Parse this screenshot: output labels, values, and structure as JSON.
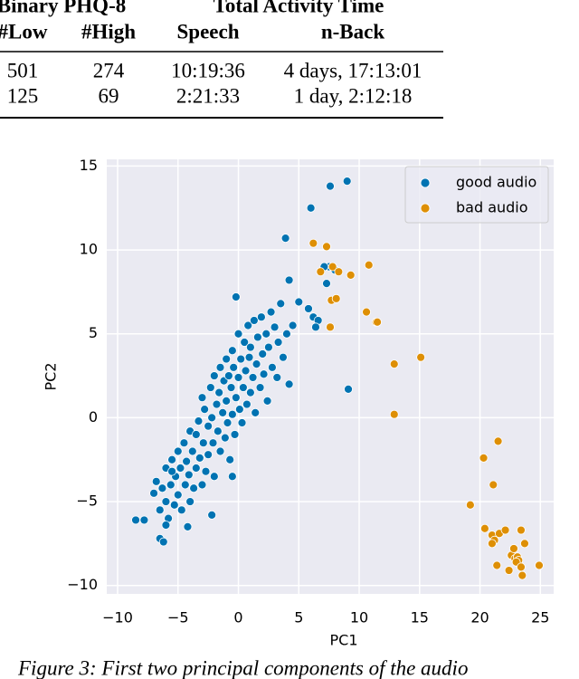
{
  "table": {
    "group_headers": [
      "Binary PHQ-8",
      "Total Activity Time"
    ],
    "columns": [
      "#Low",
      "#High",
      "Speech",
      "n-Back"
    ],
    "rows": [
      [
        "501",
        "274",
        "10:19:36",
        "4 days, 17:13:01"
      ],
      [
        "125",
        "69",
        "2:21:33",
        "1 day, 2:12:18"
      ]
    ]
  },
  "chart_data": {
    "type": "scatter",
    "xlabel": "PC1",
    "ylabel": "PC2",
    "xlim": [
      -10.9,
      26.1
    ],
    "ylim": [
      -10.5,
      15.4
    ],
    "xticks": [
      {
        "value": -10,
        "label": "−10"
      },
      {
        "value": -5,
        "label": "−5"
      },
      0,
      5,
      10,
      15,
      20,
      25
    ],
    "yticks": [
      {
        "value": -10,
        "label": "−10"
      },
      {
        "value": -5,
        "label": "−5"
      },
      0,
      5,
      10,
      15
    ],
    "grid": true,
    "legend": "upper right",
    "series": [
      {
        "name": "good audio",
        "color": "#0173b2",
        "x": [
          9,
          7.6,
          6,
          3.9,
          -8.5,
          -7.8,
          -6.5,
          -6.2,
          9.1,
          -0.2,
          4.2,
          7.5,
          8,
          6.2,
          6.6,
          5,
          4.5,
          5.8,
          6.4,
          7.1,
          7.3,
          -7,
          -6.8,
          -6.5,
          -6.3,
          -6,
          -6,
          -5.8,
          -5.6,
          -5.5,
          -5.3,
          -5.2,
          -5,
          -5,
          -4.8,
          -4.7,
          -4.5,
          -4.4,
          -4.3,
          -4.1,
          -4,
          -4,
          -3.8,
          -3.7,
          -3.5,
          -3.5,
          -3.3,
          -3.2,
          -3,
          -3,
          -2.9,
          -2.8,
          -2.7,
          -2.5,
          -2.5,
          -2.3,
          -2.2,
          -2.1,
          -2,
          -2,
          -1.8,
          -1.7,
          -1.6,
          -1.5,
          -1.5,
          -1.3,
          -1.2,
          -1.1,
          -1,
          -1,
          -0.9,
          -0.8,
          -0.7,
          -0.6,
          -0.5,
          -0.5,
          -0.4,
          -0.3,
          -0.2,
          0,
          0,
          0.1,
          0.2,
          0.3,
          0.4,
          0.5,
          0.6,
          0.7,
          0.8,
          0.9,
          1,
          1,
          1.2,
          1.3,
          1.4,
          1.5,
          1.6,
          1.8,
          1.9,
          2,
          2.1,
          2.3,
          2.4,
          2.5,
          2.7,
          2.8,
          3,
          3.2,
          3.3,
          3.5,
          3.7,
          4,
          4.2,
          -4.2,
          -2.2,
          -6,
          -0.5,
          -5.5
        ],
        "y": [
          14.1,
          13.8,
          12.5,
          10.7,
          -6.1,
          -6.1,
          -7.2,
          -7.4,
          1.7,
          7.2,
          8.2,
          9,
          8.8,
          6,
          5.8,
          6.9,
          5.5,
          6.5,
          5.4,
          9,
          8,
          -4.5,
          -3.8,
          -5.5,
          -4.2,
          -5,
          -3,
          -6,
          -4,
          -2.5,
          -5.2,
          -3.5,
          -4.6,
          -2,
          -3,
          -5.5,
          -1.5,
          -4,
          -2.6,
          -3.4,
          -0.8,
          -5,
          -2,
          -4.2,
          -1,
          -3,
          -0.2,
          -2.4,
          -4,
          1.2,
          -1.5,
          0.5,
          -3.2,
          -0.5,
          -2.2,
          1.8,
          0,
          -1.5,
          2.5,
          -3.5,
          0.8,
          -0.8,
          1.5,
          -2,
          3,
          0.3,
          2.2,
          -1.2,
          1,
          3.5,
          -0.3,
          2.5,
          -2.5,
          1.8,
          0.2,
          4,
          3,
          -1,
          1.2,
          2.4,
          5,
          0.5,
          3.5,
          -0.3,
          1.8,
          4.5,
          2.8,
          0.8,
          5.5,
          3.6,
          1.5,
          4.2,
          2.4,
          5.8,
          0.3,
          3.2,
          4.8,
          1.8,
          6,
          3.8,
          2.6,
          5,
          1,
          4.2,
          6.3,
          3,
          5.4,
          2.4,
          4.5,
          6.8,
          3.6,
          5,
          2,
          -6.5,
          -5.8,
          -6.4,
          -3.5,
          -3.2
        ]
      },
      {
        "name": "bad audio",
        "color": "#de8f05",
        "x": [
          6.2,
          7.3,
          6.8,
          7.8,
          8.3,
          9.3,
          10.8,
          7.7,
          8.1,
          7.6,
          10.6,
          11.4,
          11.5,
          15.1,
          12.9,
          12.9,
          20.3,
          21.5,
          21.1,
          19.2,
          20.4,
          21,
          21.2,
          21,
          21.6,
          22.1,
          23.4,
          21.4,
          22.6,
          22.9,
          23.1,
          23.2,
          23,
          23.4,
          23.5,
          24.9,
          22.4,
          22.8,
          23.7
        ],
        "y": [
          10.4,
          10.2,
          8.7,
          9,
          8.7,
          8.5,
          9.1,
          7,
          7.1,
          5.4,
          6.3,
          5.7,
          5.7,
          3.6,
          3.2,
          0.2,
          -2.4,
          -1.4,
          -4,
          -5.2,
          -6.6,
          -7,
          -7.3,
          -7.5,
          -6.9,
          -6.7,
          -6.7,
          -8.8,
          -8.2,
          -8.4,
          -8.3,
          -8.5,
          -8.6,
          -8.9,
          -9.4,
          -8.8,
          -9.1,
          -7.8,
          -7.5
        ]
      }
    ]
  },
  "caption": "Figure 3: First two principal components of the audio"
}
